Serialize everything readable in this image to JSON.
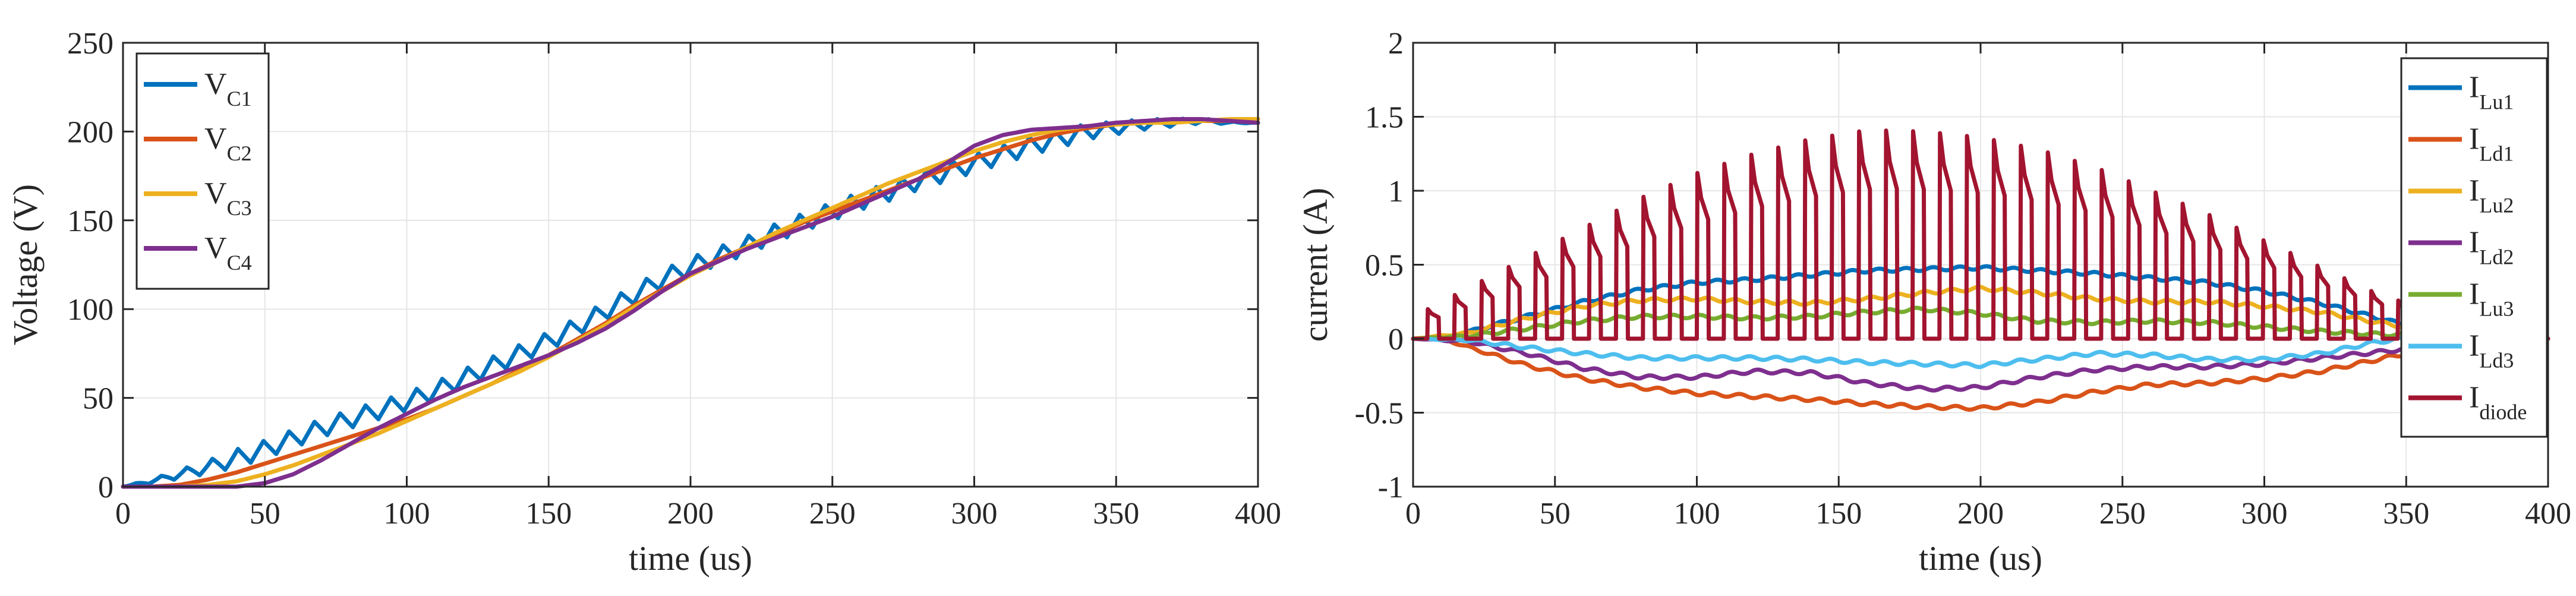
{
  "chart_data": [
    {
      "type": "line",
      "name": "voltage-chart",
      "title": "",
      "xlabel": "time (us)",
      "ylabel": "Voltage (V)",
      "xlim": [
        0,
        400
      ],
      "ylim": [
        0,
        250
      ],
      "xticks": [
        0,
        50,
        100,
        150,
        200,
        250,
        300,
        350,
        400
      ],
      "yticks": [
        0,
        50,
        100,
        150,
        200,
        250
      ],
      "grid": true,
      "legend_position": "top-left",
      "series": [
        {
          "name": "VC1",
          "label_main": "V",
          "label_sub": "C1",
          "color": "#0072BD",
          "x": [
            0,
            10,
            20,
            30,
            40,
            50,
            60,
            70,
            80,
            90,
            100,
            110,
            120,
            130,
            140,
            150,
            160,
            170,
            180,
            190,
            200,
            210,
            220,
            230,
            240,
            250,
            260,
            270,
            280,
            290,
            300,
            310,
            320,
            330,
            340,
            350,
            360,
            370,
            380,
            390,
            400
          ],
          "y": [
            0,
            3,
            7,
            11,
            16,
            21,
            27,
            33,
            38,
            43,
            48,
            54,
            61,
            68,
            75,
            82,
            90,
            99,
            108,
            117,
            124,
            130,
            136,
            143,
            149,
            155,
            161,
            166,
            172,
            177,
            182,
            187,
            192,
            196,
            200,
            202,
            204,
            205,
            206,
            205,
            205
          ],
          "ripple": 5,
          "ripple_period": 9
        },
        {
          "name": "VC2",
          "label_main": "V",
          "label_sub": "C2",
          "color": "#D95319",
          "x": [
            0,
            10,
            20,
            30,
            40,
            50,
            60,
            70,
            80,
            90,
            100,
            110,
            120,
            130,
            140,
            150,
            160,
            170,
            180,
            190,
            200,
            210,
            220,
            230,
            240,
            250,
            260,
            270,
            280,
            290,
            300,
            310,
            320,
            330,
            340,
            350,
            360,
            370,
            380,
            390,
            400
          ],
          "y": [
            0,
            0,
            1,
            4,
            8,
            13,
            18,
            23,
            28,
            33,
            38,
            44,
            51,
            58,
            66,
            74,
            83,
            92,
            102,
            111,
            120,
            128,
            135,
            142,
            149,
            155,
            161,
            167,
            173,
            179,
            185,
            190,
            195,
            199,
            202,
            204,
            205,
            206,
            206,
            206,
            207
          ]
        },
        {
          "name": "VC3",
          "label_main": "V",
          "label_sub": "C3",
          "color": "#EDB120",
          "x": [
            0,
            10,
            20,
            30,
            40,
            50,
            60,
            70,
            80,
            90,
            100,
            110,
            120,
            130,
            140,
            150,
            160,
            170,
            180,
            190,
            200,
            210,
            220,
            230,
            240,
            250,
            260,
            270,
            280,
            290,
            300,
            310,
            320,
            330,
            340,
            350,
            360,
            370,
            380,
            390,
            400
          ],
          "y": [
            0,
            0,
            0,
            1,
            3,
            7,
            12,
            18,
            24,
            30,
            37,
            44,
            51,
            58,
            65,
            73,
            82,
            91,
            101,
            110,
            119,
            127,
            135,
            143,
            150,
            157,
            164,
            171,
            177,
            183,
            189,
            194,
            198,
            201,
            203,
            204,
            205,
            205,
            206,
            207,
            207
          ]
        },
        {
          "name": "VC4",
          "label_main": "V",
          "label_sub": "C4",
          "color": "#7E2F8E",
          "x": [
            0,
            10,
            20,
            30,
            40,
            50,
            60,
            70,
            80,
            90,
            100,
            110,
            120,
            130,
            140,
            150,
            160,
            170,
            180,
            190,
            200,
            210,
            220,
            230,
            240,
            250,
            260,
            270,
            280,
            290,
            300,
            310,
            320,
            330,
            340,
            350,
            360,
            370,
            380,
            390,
            400
          ],
          "y": [
            0,
            0,
            0,
            0,
            0,
            2,
            7,
            15,
            24,
            33,
            41,
            49,
            56,
            62,
            68,
            74,
            81,
            89,
            99,
            110,
            120,
            127,
            134,
            140,
            146,
            152,
            159,
            166,
            173,
            182,
            192,
            198,
            201,
            202,
            203,
            205,
            206,
            207,
            207,
            206,
            205
          ]
        }
      ]
    },
    {
      "type": "line",
      "name": "current-chart",
      "title": "",
      "xlabel": "time (us)",
      "ylabel": "current (A)",
      "xlim": [
        0,
        400
      ],
      "ylim": [
        -1,
        2
      ],
      "xticks": [
        0,
        50,
        100,
        150,
        200,
        250,
        300,
        350,
        400
      ],
      "yticks": [
        -1,
        -0.5,
        0,
        0.5,
        1,
        1.5,
        2
      ],
      "ytick_labels": [
        "-1",
        "-0.5",
        "0",
        "0.5",
        "1",
        "1.5",
        "2"
      ],
      "grid": true,
      "legend_position": "top-right",
      "series": [
        {
          "name": "ILu1",
          "label_main": "I",
          "label_sub": "Lu1",
          "color": "#0072BD",
          "x": [
            0,
            10,
            20,
            40,
            60,
            80,
            100,
            120,
            140,
            160,
            180,
            200,
            220,
            240,
            260,
            280,
            300,
            320,
            340,
            350,
            360,
            380,
            400
          ],
          "y": [
            0,
            0,
            0.05,
            0.15,
            0.25,
            0.33,
            0.38,
            0.4,
            0.43,
            0.46,
            0.47,
            0.48,
            0.46,
            0.44,
            0.41,
            0.38,
            0.32,
            0.24,
            0.14,
            0.09,
            0.05,
            0.03,
            0
          ]
        },
        {
          "name": "ILd1",
          "label_main": "I",
          "label_sub": "Ld1",
          "color": "#D95319",
          "x": [
            0,
            10,
            20,
            40,
            60,
            80,
            100,
            120,
            140,
            160,
            180,
            200,
            220,
            240,
            260,
            280,
            300,
            320,
            340,
            360,
            380,
            400
          ],
          "y": [
            0,
            0,
            -0.06,
            -0.18,
            -0.27,
            -0.33,
            -0.37,
            -0.39,
            -0.41,
            -0.44,
            -0.46,
            -0.47,
            -0.43,
            -0.36,
            -0.31,
            -0.3,
            -0.27,
            -0.22,
            -0.14,
            -0.06,
            -0.02,
            0
          ]
        },
        {
          "name": "ILu2",
          "label_main": "I",
          "label_sub": "Lu2",
          "color": "#EDB120",
          "x": [
            0,
            20,
            40,
            60,
            80,
            100,
            120,
            140,
            160,
            180,
            200,
            220,
            240,
            260,
            280,
            300,
            320,
            340,
            360,
            380,
            400
          ],
          "y": [
            0,
            0.04,
            0.14,
            0.22,
            0.26,
            0.27,
            0.25,
            0.24,
            0.27,
            0.31,
            0.34,
            0.31,
            0.27,
            0.25,
            0.25,
            0.22,
            0.18,
            0.11,
            0.05,
            0.02,
            0
          ]
        },
        {
          "name": "ILd2",
          "label_main": "I",
          "label_sub": "Ld2",
          "color": "#7E2F8E",
          "x": [
            0,
            20,
            40,
            60,
            80,
            100,
            120,
            140,
            160,
            180,
            200,
            220,
            240,
            260,
            280,
            300,
            320,
            340,
            360,
            380,
            400
          ],
          "y": [
            0,
            -0.02,
            -0.1,
            -0.2,
            -0.26,
            -0.26,
            -0.22,
            -0.23,
            -0.3,
            -0.34,
            -0.33,
            -0.26,
            -0.21,
            -0.19,
            -0.19,
            -0.17,
            -0.13,
            -0.09,
            -0.05,
            -0.02,
            0
          ]
        },
        {
          "name": "ILu3",
          "label_main": "I",
          "label_sub": "Lu3",
          "color": "#77AC30",
          "x": [
            0,
            20,
            40,
            60,
            80,
            100,
            120,
            140,
            160,
            180,
            200,
            220,
            240,
            260,
            280,
            300,
            320,
            340,
            360,
            380,
            400
          ],
          "y": [
            0,
            0.02,
            0.07,
            0.12,
            0.15,
            0.15,
            0.14,
            0.15,
            0.18,
            0.2,
            0.17,
            0.12,
            0.11,
            0.12,
            0.11,
            0.08,
            0.05,
            0.03,
            0.02,
            0.01,
            0
          ]
        },
        {
          "name": "ILd3",
          "label_main": "I",
          "label_sub": "Ld3",
          "color": "#4DBEEE",
          "x": [
            0,
            20,
            40,
            60,
            80,
            100,
            120,
            140,
            160,
            180,
            200,
            220,
            240,
            260,
            280,
            300,
            320,
            340,
            360,
            380,
            400
          ],
          "y": [
            0,
            -0.01,
            -0.06,
            -0.1,
            -0.13,
            -0.13,
            -0.13,
            -0.14,
            -0.16,
            -0.17,
            -0.18,
            -0.14,
            -0.1,
            -0.11,
            -0.14,
            -0.14,
            -0.1,
            -0.02,
            0.02,
            0.01,
            0
          ]
        },
        {
          "name": "Idiode",
          "label_main": "I",
          "label_sub": "diode",
          "color": "#A2142F",
          "type": "pulse",
          "pulse_period": 9.5,
          "pulse_width": 4,
          "pulse_start": 5,
          "pulse_end": 395,
          "envelope_x": [
            0,
            20,
            40,
            60,
            80,
            100,
            120,
            140,
            160,
            180,
            200,
            220,
            240,
            260,
            280,
            300,
            320,
            340,
            360,
            380,
            400
          ],
          "envelope_y": [
            0.15,
            0.35,
            0.55,
            0.75,
            0.95,
            1.12,
            1.25,
            1.35,
            1.41,
            1.4,
            1.36,
            1.28,
            1.16,
            1.0,
            0.84,
            0.66,
            0.48,
            0.3,
            0.18,
            0.1,
            0.05
          ]
        }
      ]
    }
  ]
}
